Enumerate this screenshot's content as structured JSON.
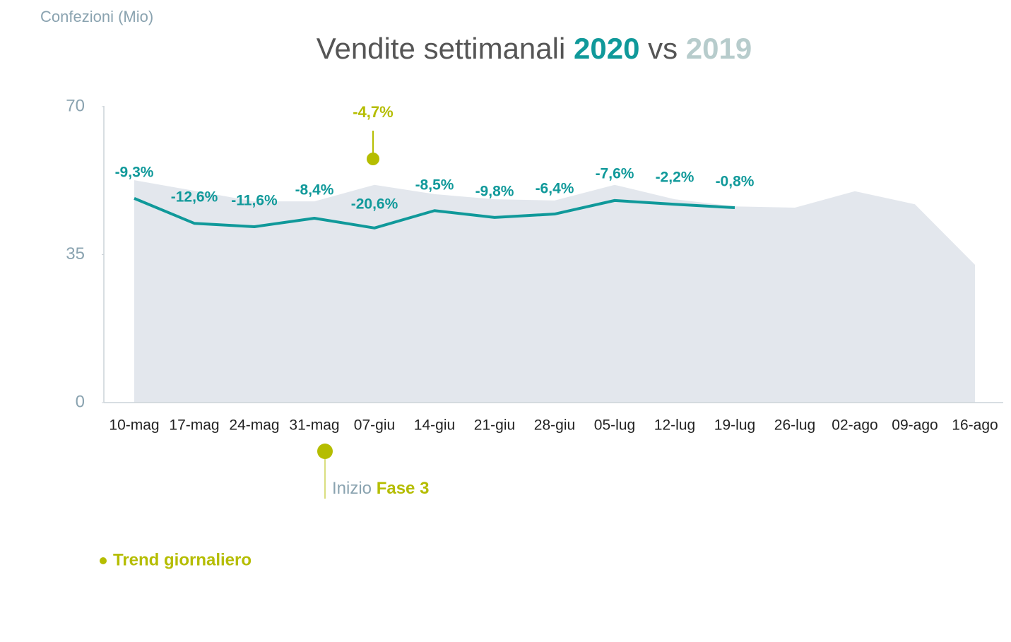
{
  "chart_data": {
    "type": "line",
    "title_prefix": "Vendite settimanali",
    "title_joiner": "vs",
    "y_label": "Confezioni (Mio)",
    "categories": [
      "10-mag",
      "17-mag",
      "24-mag",
      "31-mag",
      "07-giu",
      "14-giu",
      "21-giu",
      "28-giu",
      "05-lug",
      "12-lug",
      "19-lug",
      "26-lug",
      "02-ago",
      "09-ago",
      "16-ago"
    ],
    "series": [
      {
        "name": "2019",
        "kind": "area",
        "color": "#e3e7ed",
        "title_color": "#b7cccc",
        "values": [
          52.6,
          50.1,
          47.6,
          47.6,
          51.5,
          49.3,
          48.1,
          47.8,
          51.5,
          48.1,
          46.4,
          46.1,
          50.0,
          46.9,
          32.6
        ]
      },
      {
        "name": "2020",
        "kind": "line",
        "color": "#10999a",
        "title_color": "#10999a",
        "values": [
          48.3,
          42.4,
          41.6,
          43.6,
          41.3,
          45.4,
          43.8,
          44.6,
          47.8,
          46.9,
          46.1,
          null,
          null,
          null,
          null
        ]
      }
    ],
    "pct_change": {
      "values": [
        -9.3,
        -12.6,
        -11.6,
        -8.4,
        -20.6,
        -8.5,
        -9.8,
        -6.4,
        -7.6,
        -2.2,
        -0.8
      ],
      "value_labels": [
        "-9,3%",
        "-12,6%",
        "-11,6%",
        "-8,4%",
        "-20,6%",
        "-8,5%",
        "-9,8%",
        "-6,4%",
        "-7,6%",
        "-2,2%",
        "-0,8%"
      ]
    },
    "daily_trend": {
      "name": "Trend giornaliero",
      "color": "#b5bd00",
      "value": -4.7,
      "value_label": "-4,7%"
    },
    "phase_note": {
      "prefix": "Inizio",
      "highlight": "Fase 3"
    },
    "ylim": [
      0,
      70
    ],
    "yticks": [
      0,
      35,
      70
    ]
  }
}
